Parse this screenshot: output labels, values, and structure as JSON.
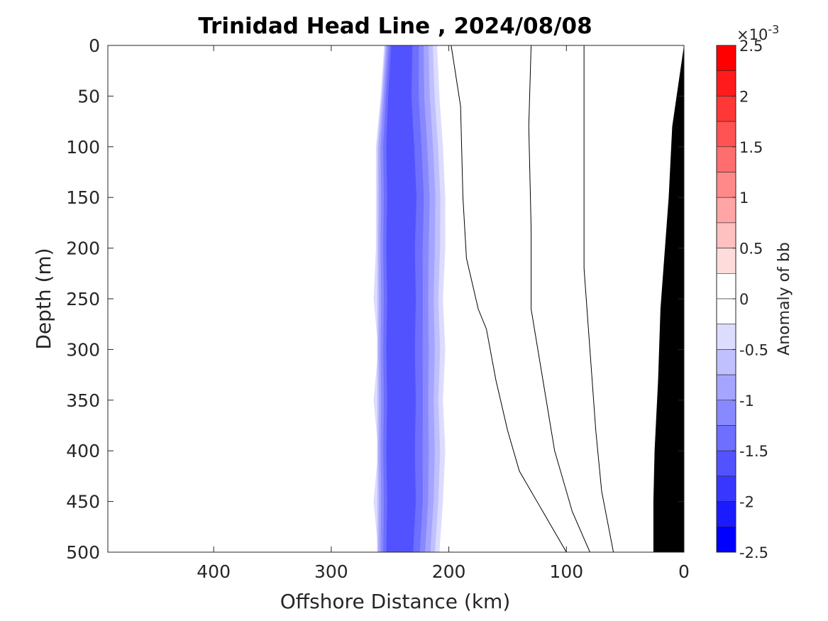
{
  "chart_data": {
    "type": "heatmap",
    "title": "Trinidad Head Line , 2024/08/08",
    "xlabel": "Offshore Distance (km)",
    "ylabel": "Depth (m)",
    "x_direction": "reversed",
    "y_direction": "reversed",
    "xlim": [
      490,
      0
    ],
    "ylim": [
      0,
      500
    ],
    "x_ticks": [
      400,
      300,
      200,
      100,
      0
    ],
    "x_tick_labels": [
      "400",
      "300",
      "200",
      "100",
      "0"
    ],
    "y_ticks": [
      0,
      50,
      100,
      150,
      200,
      250,
      300,
      350,
      400,
      450,
      500
    ],
    "y_tick_labels": [
      "0",
      "50",
      "100",
      "150",
      "200",
      "250",
      "300",
      "350",
      "400",
      "450",
      "500"
    ],
    "grid": false,
    "colorbar": {
      "label": "Anomaly of bb",
      "exponent_label": "×10",
      "exponent_value": "-3",
      "range": [
        -2.5,
        2.5
      ],
      "ticks": [
        2.5,
        2,
        1.5,
        1,
        0.5,
        0,
        -0.5,
        -1,
        -1.5,
        -2,
        -2.5
      ],
      "tick_labels": [
        "2.5",
        "2",
        "1.5",
        "1",
        "0.5",
        "0",
        "-0.5",
        "-1",
        "-1.5",
        "-2",
        "-2.5"
      ],
      "levels": [
        2.25,
        2.0,
        1.75,
        1.5,
        1.25,
        1.0,
        0.75,
        0.5,
        0.25,
        0.0,
        -0.25,
        -0.5,
        -0.75,
        -1.0,
        -1.25,
        -1.5,
        -1.75,
        -2.0,
        -2.25,
        -2.5
      ],
      "colors": [
        "#ff0000",
        "#ff1b1b",
        "#ff3737",
        "#ff5252",
        "#ff6e6e",
        "#ff8989",
        "#ffa5a5",
        "#ffc0c0",
        "#ffdcdc",
        "#ffffff",
        "#ffffff",
        "#dcdcff",
        "#c0c0ff",
        "#a5a5ff",
        "#8989ff",
        "#6e6eff",
        "#5252ff",
        "#3737ff",
        "#1b1bff",
        "#0000ff"
      ]
    },
    "negative_band": {
      "description_levels": [
        -0.5,
        -1.0,
        -1.5,
        -2.0
      ],
      "west_edge_km": [
        255,
        258,
        262,
        262,
        262,
        262,
        262,
        262,
        262,
        262,
        262
      ],
      "core_km": [
        240,
        242,
        240,
        238,
        240,
        238,
        240,
        238,
        240,
        238,
        240
      ],
      "east_edge_km": [
        210,
        208,
        205,
        203,
        203,
        205,
        203,
        205,
        203,
        205,
        208
      ],
      "depths_m": [
        0,
        50,
        100,
        150,
        200,
        250,
        300,
        350,
        400,
        450,
        500
      ]
    },
    "bathymetry": {
      "color": "#000000",
      "points_km_m": [
        [
          0,
          0
        ],
        [
          10,
          80
        ],
        [
          13,
          150
        ],
        [
          20,
          260
        ],
        [
          22,
          330
        ],
        [
          25,
          400
        ],
        [
          26,
          450
        ],
        [
          26,
          500
        ],
        [
          0,
          500
        ]
      ]
    }
  }
}
